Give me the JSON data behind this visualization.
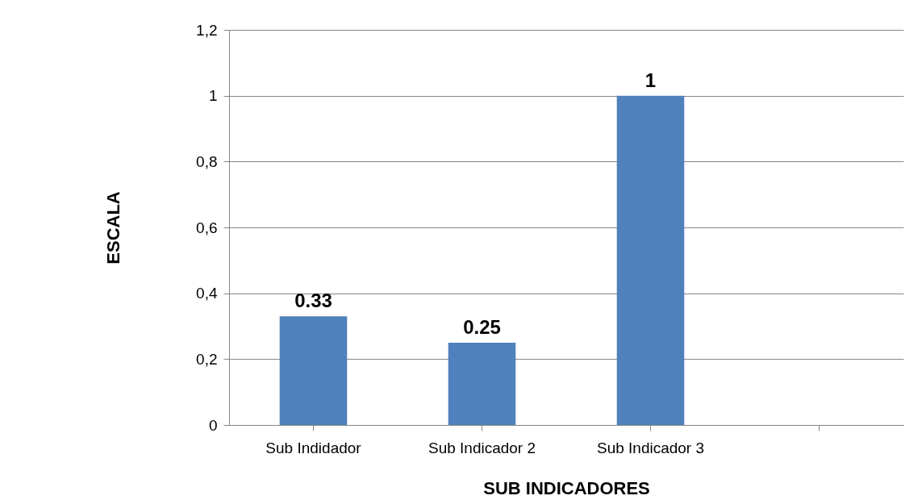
{
  "chart_data": {
    "type": "bar",
    "xlabel": "SUB INDICADORES",
    "ylabel": "ESCALA",
    "categories": [
      "Sub Indidador",
      "Sub Indicador 2",
      "Sub Indicador 3",
      null
    ],
    "values": [
      0.33,
      0.25,
      1,
      null
    ],
    "value_labels": [
      "0.33",
      "0.25",
      "1",
      null
    ],
    "color": "#4f81bd",
    "ylim": [
      0,
      1.2
    ],
    "yticks": [
      {
        "value": 0,
        "label": "0"
      },
      {
        "value": 0.2,
        "label": "0,2"
      },
      {
        "value": 0.4,
        "label": "0,4"
      },
      {
        "value": 0.6,
        "label": "0,6"
      },
      {
        "value": 0.8,
        "label": "0,8"
      },
      {
        "value": 1,
        "label": "1"
      },
      {
        "value": 1.2,
        "label": "1,2"
      }
    ],
    "grid": "y"
  }
}
